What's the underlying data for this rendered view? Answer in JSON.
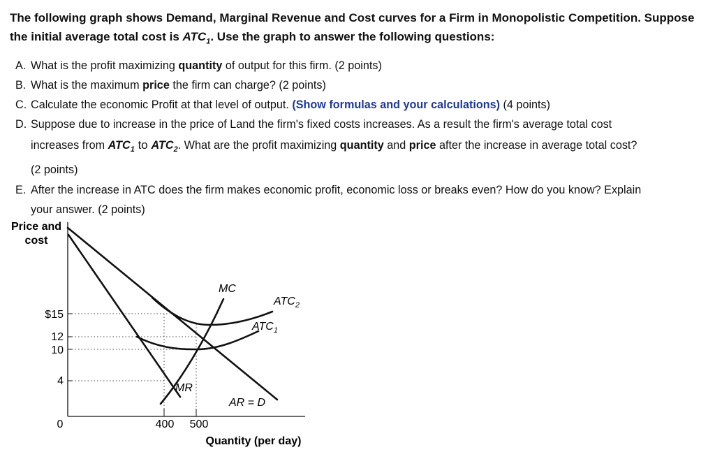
{
  "intro": {
    "line1": "The following graph shows Demand, Marginal Revenue and Cost curves for a Firm in Monopolistic Competition. Suppose",
    "line2_pre": "the initial average total cost is ",
    "line2_atc": "ATC",
    "line2_sub": "1",
    "line2_post": ".  Use the graph to answer the following questions:"
  },
  "questions": {
    "a": {
      "letter": "A.",
      "pre": "What is the profit maximizing ",
      "bold": "quantity",
      "post": " of output for this firm. (2 points)"
    },
    "b": {
      "letter": "B.",
      "pre": "What is the maximum ",
      "bold": "price",
      "post": " the firm can charge? (2 points)"
    },
    "c": {
      "letter": "C.",
      "pre": "Calculate the economic Profit at that level of output. ",
      "blue": "(Show formulas and your calculations)",
      "post": " (4 points)"
    },
    "d": {
      "letter": "D.",
      "l1": "Suppose due to increase in the price of Land the firm's fixed costs increases. As a result the firm's average total cost",
      "l2_pre": "increases from ",
      "atc": "ATC",
      "sub1": "1",
      "to": " to ",
      "sub2": "2",
      "l2_mid": ". What are the profit maximizing ",
      "bold1": "quantity",
      "and": " and ",
      "bold2": "price",
      "l2_post": " after the increase in average total cost?",
      "l3": "(2 points)"
    },
    "e": {
      "letter": "E.",
      "l1": "After the increase in ATC does the firm makes economic profit, economic loss or breaks even?  How do you know? Explain",
      "l2": "your answer. (2 points)"
    }
  },
  "chart_data": {
    "type": "line",
    "ylabel_line1": "Price and",
    "ylabel_line2": "cost",
    "xlabel": "Quantity (per day)",
    "y_ticks": [
      "$15",
      "12",
      "10",
      "4",
      "0"
    ],
    "y_tick_values": [
      15,
      12,
      10,
      4,
      0
    ],
    "x_ticks": [
      "400",
      "500"
    ],
    "x_tick_values": [
      400,
      500
    ],
    "curve_labels": {
      "mc": "MC",
      "atc2_base": "ATC",
      "atc2_sub": "2",
      "atc1_base": "ATC",
      "atc1_sub": "1",
      "mr": "MR",
      "demand": "AR = D"
    },
    "key_points": {
      "mr_equals_mc": {
        "q": 400,
        "p": 4
      },
      "demand_at_400": {
        "q": 400,
        "p": 12
      },
      "atc1_min": {
        "q": 500,
        "p": 10
      },
      "atc2_at_500": {
        "q": 500,
        "p": 15
      }
    },
    "colors": {
      "curves": "#111111",
      "guides": "#444444"
    }
  }
}
